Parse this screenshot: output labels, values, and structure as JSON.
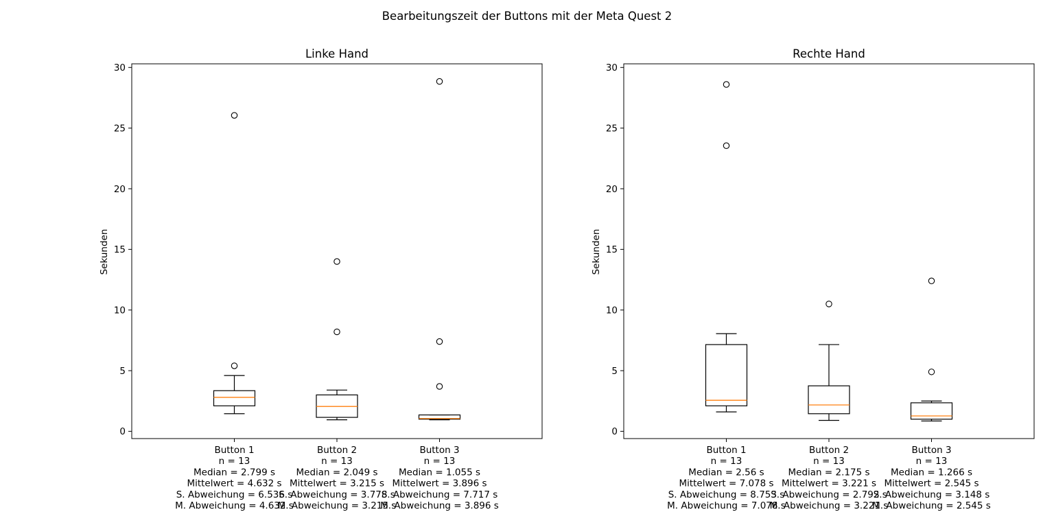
{
  "figure": {
    "suptitle": "Bearbeitungszeit der Buttons mit der Meta Quest 2",
    "colors": {
      "median": "#ff7f0e",
      "box": "#000000",
      "background": "#ffffff"
    }
  },
  "chart_data": [
    {
      "type": "box",
      "title": "Linke Hand",
      "ylabel": "Sekunden",
      "ylim": [
        -0.6,
        30.3
      ],
      "yticks": [
        0,
        5,
        10,
        15,
        20,
        25,
        30
      ],
      "grid": false,
      "boxes": [
        {
          "name": "Button 1",
          "q1": 2.1,
          "median": 2.799,
          "q3": 3.35,
          "whisker_low": 1.45,
          "whisker_high": 4.6,
          "outliers": [
            5.4,
            26.05
          ],
          "info": [
            "Button 1",
            "n = 13",
            "Median = 2.799 s",
            "Mittelwert = 4.632 s",
            "S. Abweichung = 6.536 s",
            "M. Abweichung = 4.632 s"
          ]
        },
        {
          "name": "Button 2",
          "q1": 1.15,
          "median": 2.049,
          "q3": 3.0,
          "whisker_low": 0.95,
          "whisker_high": 3.4,
          "outliers": [
            8.2,
            14.0
          ],
          "info": [
            "Button 2",
            "n = 13",
            "Median = 2.049 s",
            "Mittelwert = 3.215 s",
            "S. Abweichung = 3.778 s",
            "M. Abweichung = 3.215 s"
          ]
        },
        {
          "name": "Button 3",
          "q1": 1.0,
          "median": 1.055,
          "q3": 1.35,
          "whisker_low": 0.95,
          "whisker_high": 1.35,
          "outliers": [
            3.7,
            7.4,
            28.85
          ],
          "info": [
            "Button 3",
            "n = 13",
            "Median = 1.055 s",
            "Mittelwert = 3.896 s",
            "S. Abweichung = 7.717 s",
            "M. Abweichung = 3.896 s"
          ]
        }
      ]
    },
    {
      "type": "box",
      "title": "Rechte Hand",
      "ylabel": "Sekunden",
      "ylim": [
        -0.6,
        30.3
      ],
      "yticks": [
        0,
        5,
        10,
        15,
        20,
        25,
        30
      ],
      "grid": false,
      "boxes": [
        {
          "name": "Button 1",
          "q1": 2.1,
          "median": 2.56,
          "q3": 7.15,
          "whisker_low": 1.6,
          "whisker_high": 8.05,
          "outliers": [
            23.55,
            28.6
          ],
          "info": [
            "Button 1",
            "n = 13",
            "Median = 2.56 s",
            "Mittelwert = 7.078 s",
            "S. Abweichung = 8.753 s",
            "M. Abweichung = 7.078 s"
          ]
        },
        {
          "name": "Button 2",
          "q1": 1.45,
          "median": 2.175,
          "q3": 3.75,
          "whisker_low": 0.9,
          "whisker_high": 7.15,
          "outliers": [
            10.5
          ],
          "info": [
            "Button 2",
            "n = 13",
            "Median = 2.175 s",
            "Mittelwert = 3.221 s",
            "S. Abweichung = 2.792 s",
            "M. Abweichung = 3.221 s"
          ]
        },
        {
          "name": "Button 3",
          "q1": 1.0,
          "median": 1.266,
          "q3": 2.35,
          "whisker_low": 0.85,
          "whisker_high": 2.5,
          "outliers": [
            4.9,
            12.4
          ],
          "info": [
            "Button 3",
            "n = 13",
            "Median = 1.266 s",
            "Mittelwert = 2.545 s",
            "S. Abweichung = 3.148 s",
            "M. Abweichung = 2.545 s"
          ]
        }
      ]
    }
  ]
}
